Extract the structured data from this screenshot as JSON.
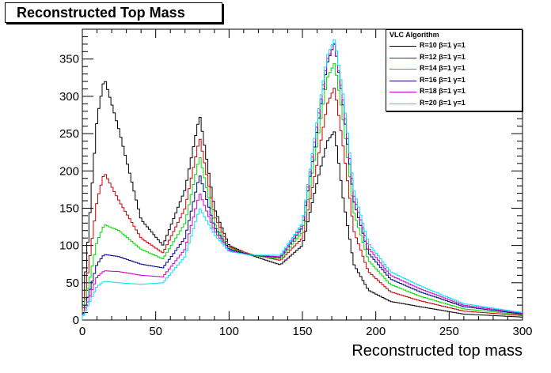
{
  "chart_data": {
    "type": "line",
    "title": "Reconstructed Top Mass",
    "xlabel": "Reconstructed top mass",
    "ylabel": "",
    "xlim": [
      0,
      300
    ],
    "ylim": [
      0,
      390
    ],
    "x_ticks": [
      "0",
      "50",
      "100",
      "150",
      "200",
      "250",
      "300"
    ],
    "y_ticks": [
      "0",
      "50",
      "100",
      "150",
      "200",
      "250",
      "300",
      "350"
    ],
    "grid": false,
    "legend_position": "top-right",
    "legend_title": "VLC Algorithm",
    "x": [
      0,
      10,
      15,
      25,
      40,
      55,
      70,
      80,
      90,
      100,
      115,
      135,
      150,
      160,
      167,
      172,
      178,
      185,
      195,
      210,
      230,
      260,
      300
    ],
    "series": [
      {
        "name": "R=10 β=1 γ=1",
        "color": "#000000",
        "values": [
          5,
          270,
          325,
          255,
          135,
          100,
          175,
          275,
          150,
          100,
          87,
          74,
          100,
          185,
          240,
          253,
          160,
          75,
          40,
          25,
          18,
          8,
          4
        ]
      },
      {
        "name": "R=12 β=1 γ=1",
        "color": "#cc0000",
        "values": [
          5,
          160,
          198,
          160,
          110,
          90,
          150,
          245,
          140,
          98,
          88,
          80,
          110,
          210,
          290,
          312,
          230,
          120,
          65,
          38,
          26,
          12,
          6
        ]
      },
      {
        "name": "R=14 β=1 γ=1",
        "color": "#00dd00",
        "values": [
          5,
          105,
          128,
          120,
          95,
          82,
          130,
          220,
          130,
          96,
          87,
          82,
          118,
          235,
          325,
          345,
          265,
          145,
          80,
          48,
          32,
          15,
          7
        ]
      },
      {
        "name": "R=16 β=1 γ=1",
        "color": "#00008b",
        "values": [
          4,
          75,
          88,
          85,
          75,
          70,
          110,
          195,
          125,
          95,
          87,
          84,
          124,
          255,
          345,
          372,
          285,
          160,
          90,
          55,
          38,
          18,
          8
        ]
      },
      {
        "name": "R=18 β=1 γ=1",
        "color": "#cc00cc",
        "values": [
          4,
          58,
          66,
          65,
          60,
          58,
          95,
          170,
          120,
          93,
          87,
          85,
          128,
          262,
          350,
          370,
          292,
          168,
          97,
          60,
          42,
          20,
          9
        ]
      },
      {
        "name": "R=20 β=1 γ=1",
        "color": "#00e5ee",
        "values": [
          3,
          45,
          52,
          50,
          48,
          50,
          85,
          150,
          115,
          92,
          87,
          87,
          130,
          268,
          355,
          377,
          300,
          175,
          103,
          65,
          46,
          22,
          10
        ]
      }
    ]
  }
}
